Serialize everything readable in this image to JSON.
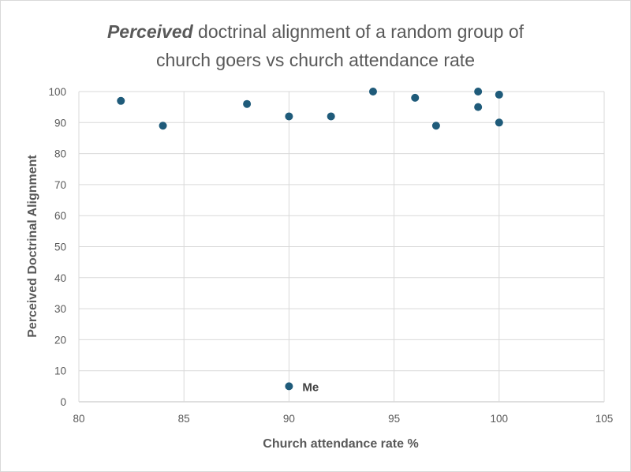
{
  "chart_data": {
    "type": "scatter",
    "title_emphasis": "Perceived",
    "title_line1_rest": " doctrinal alignment of a random group of",
    "title_line2": "church goers vs church attendance rate",
    "xlabel": "Church attendance rate %",
    "ylabel": "Perceived Doctrinal Alignment",
    "xlim": [
      80,
      105
    ],
    "ylim": [
      0,
      100
    ],
    "x_ticks": [
      80,
      85,
      90,
      95,
      100,
      105
    ],
    "y_ticks": [
      0,
      10,
      20,
      30,
      40,
      50,
      60,
      70,
      80,
      90,
      100
    ],
    "grid": true,
    "marker_color": "#1f5b7a",
    "points": [
      {
        "x": 82,
        "y": 97
      },
      {
        "x": 84,
        "y": 89
      },
      {
        "x": 88,
        "y": 96
      },
      {
        "x": 90,
        "y": 92
      },
      {
        "x": 92,
        "y": 92
      },
      {
        "x": 94,
        "y": 100
      },
      {
        "x": 96,
        "y": 98
      },
      {
        "x": 97,
        "y": 89
      },
      {
        "x": 99,
        "y": 100
      },
      {
        "x": 99,
        "y": 95
      },
      {
        "x": 100,
        "y": 99
      },
      {
        "x": 100,
        "y": 90
      },
      {
        "x": 90,
        "y": 5,
        "label": "Me"
      }
    ]
  }
}
